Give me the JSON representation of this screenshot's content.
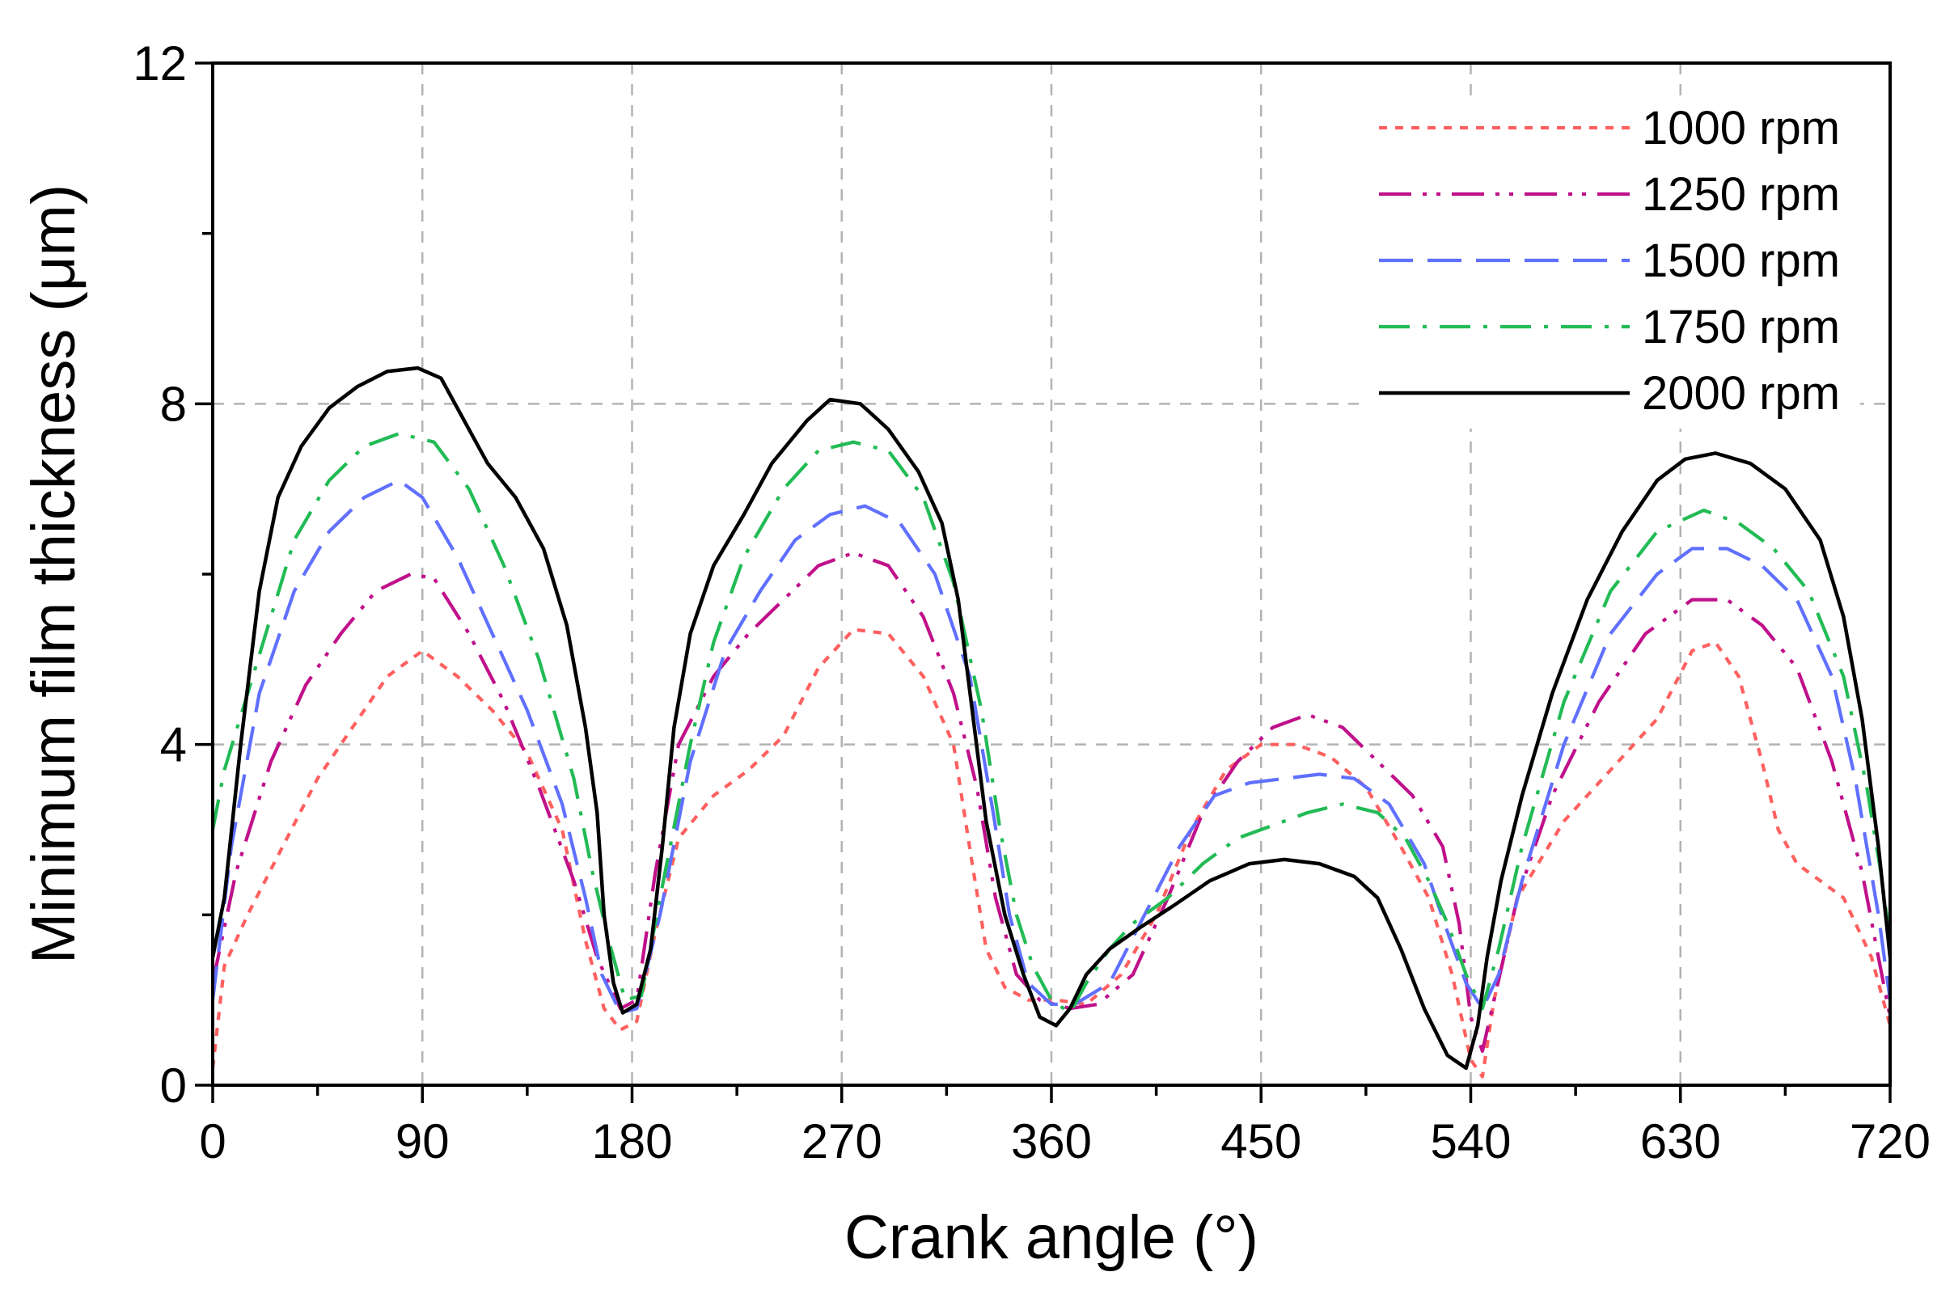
{
  "chart_data": {
    "type": "line",
    "title": "",
    "xlabel": "Crank angle (°)",
    "ylabel": "Minimum film thickness (μm)",
    "xlim": [
      0,
      720
    ],
    "ylim": [
      0,
      12
    ],
    "xticks": [
      0,
      90,
      180,
      270,
      360,
      450,
      540,
      630,
      720
    ],
    "yticks": [
      0,
      4,
      8,
      12
    ],
    "xtick_labels": [
      "0",
      "90",
      "180",
      "270",
      "360",
      "450",
      "540",
      "630",
      "720"
    ],
    "ytick_labels": [
      "0",
      "4",
      "8",
      "12"
    ],
    "grid": true,
    "legend_position": "top-right",
    "series": [
      {
        "name": "1000 rpm",
        "color": "#ff6060",
        "dash": "short-dash",
        "points": [
          [
            0,
            0.2
          ],
          [
            5,
            1.4
          ],
          [
            15,
            2.0
          ],
          [
            30,
            2.8
          ],
          [
            45,
            3.6
          ],
          [
            60,
            4.2
          ],
          [
            75,
            4.8
          ],
          [
            90,
            5.1
          ],
          [
            105,
            4.8
          ],
          [
            120,
            4.4
          ],
          [
            135,
            3.9
          ],
          [
            150,
            3.0
          ],
          [
            160,
            1.7
          ],
          [
            168,
            0.9
          ],
          [
            175,
            0.65
          ],
          [
            182,
            0.75
          ],
          [
            190,
            1.8
          ],
          [
            200,
            2.9
          ],
          [
            215,
            3.4
          ],
          [
            230,
            3.7
          ],
          [
            245,
            4.1
          ],
          [
            260,
            4.9
          ],
          [
            275,
            5.35
          ],
          [
            290,
            5.3
          ],
          [
            305,
            4.8
          ],
          [
            318,
            4.0
          ],
          [
            326,
            2.6
          ],
          [
            332,
            1.6
          ],
          [
            340,
            1.15
          ],
          [
            350,
            1.0
          ],
          [
            362,
            1.0
          ],
          [
            375,
            0.95
          ],
          [
            390,
            1.3
          ],
          [
            405,
            2.0
          ],
          [
            420,
            3.0
          ],
          [
            435,
            3.7
          ],
          [
            450,
            4.0
          ],
          [
            465,
            4.0
          ],
          [
            480,
            3.85
          ],
          [
            495,
            3.5
          ],
          [
            510,
            2.8
          ],
          [
            522,
            2.2
          ],
          [
            532,
            1.3
          ],
          [
            540,
            0.3
          ],
          [
            545,
            0.1
          ],
          [
            550,
            1.0
          ],
          [
            560,
            2.2
          ],
          [
            580,
            3.1
          ],
          [
            600,
            3.7
          ],
          [
            620,
            4.3
          ],
          [
            635,
            5.1
          ],
          [
            645,
            5.2
          ],
          [
            655,
            4.8
          ],
          [
            665,
            3.8
          ],
          [
            672,
            3.0
          ],
          [
            680,
            2.6
          ],
          [
            690,
            2.4
          ],
          [
            700,
            2.2
          ],
          [
            712,
            1.5
          ],
          [
            720,
            0.7
          ]
        ]
      },
      {
        "name": "1250 rpm",
        "color": "#c0108a",
        "dash": "dash-dot-dot",
        "points": [
          [
            0,
            1.2
          ],
          [
            10,
            2.5
          ],
          [
            25,
            3.8
          ],
          [
            40,
            4.7
          ],
          [
            55,
            5.3
          ],
          [
            70,
            5.8
          ],
          [
            85,
            6.0
          ],
          [
            95,
            5.95
          ],
          [
            110,
            5.3
          ],
          [
            125,
            4.5
          ],
          [
            140,
            3.5
          ],
          [
            155,
            2.4
          ],
          [
            165,
            1.5
          ],
          [
            175,
            0.9
          ],
          [
            182,
            1.0
          ],
          [
            190,
            2.5
          ],
          [
            200,
            4.0
          ],
          [
            215,
            4.8
          ],
          [
            230,
            5.3
          ],
          [
            245,
            5.7
          ],
          [
            260,
            6.1
          ],
          [
            275,
            6.25
          ],
          [
            290,
            6.1
          ],
          [
            305,
            5.5
          ],
          [
            318,
            4.6
          ],
          [
            328,
            3.5
          ],
          [
            336,
            2.2
          ],
          [
            345,
            1.3
          ],
          [
            355,
            1.0
          ],
          [
            368,
            0.9
          ],
          [
            380,
            0.95
          ],
          [
            395,
            1.3
          ],
          [
            410,
            2.2
          ],
          [
            425,
            3.2
          ],
          [
            440,
            3.8
          ],
          [
            455,
            4.2
          ],
          [
            470,
            4.35
          ],
          [
            485,
            4.2
          ],
          [
            500,
            3.8
          ],
          [
            515,
            3.4
          ],
          [
            528,
            2.8
          ],
          [
            535,
            1.9
          ],
          [
            540,
            0.8
          ],
          [
            545,
            0.4
          ],
          [
            550,
            1.0
          ],
          [
            560,
            2.2
          ],
          [
            575,
            3.4
          ],
          [
            595,
            4.5
          ],
          [
            615,
            5.3
          ],
          [
            635,
            5.7
          ],
          [
            650,
            5.7
          ],
          [
            665,
            5.4
          ],
          [
            680,
            4.9
          ],
          [
            695,
            3.8
          ],
          [
            708,
            2.5
          ],
          [
            715,
            1.5
          ],
          [
            720,
            0.8
          ]
        ]
      },
      {
        "name": "1500 rpm",
        "color": "#6070ff",
        "dash": "long-dash",
        "points": [
          [
            0,
            1.0
          ],
          [
            8,
            2.8
          ],
          [
            20,
            4.6
          ],
          [
            35,
            5.8
          ],
          [
            50,
            6.5
          ],
          [
            65,
            6.9
          ],
          [
            80,
            7.1
          ],
          [
            90,
            6.9
          ],
          [
            105,
            6.2
          ],
          [
            120,
            5.3
          ],
          [
            135,
            4.4
          ],
          [
            150,
            3.3
          ],
          [
            160,
            2.2
          ],
          [
            167,
            1.3
          ],
          [
            175,
            0.85
          ],
          [
            182,
            0.9
          ],
          [
            192,
            2.0
          ],
          [
            205,
            3.8
          ],
          [
            220,
            5.1
          ],
          [
            235,
            5.8
          ],
          [
            250,
            6.4
          ],
          [
            265,
            6.7
          ],
          [
            280,
            6.8
          ],
          [
            295,
            6.6
          ],
          [
            310,
            6.0
          ],
          [
            325,
            4.8
          ],
          [
            335,
            3.2
          ],
          [
            342,
            2.0
          ],
          [
            350,
            1.2
          ],
          [
            360,
            0.95
          ],
          [
            370,
            0.95
          ],
          [
            385,
            1.2
          ],
          [
            400,
            2.0
          ],
          [
            415,
            2.8
          ],
          [
            430,
            3.4
          ],
          [
            445,
            3.55
          ],
          [
            460,
            3.6
          ],
          [
            475,
            3.65
          ],
          [
            490,
            3.6
          ],
          [
            505,
            3.3
          ],
          [
            520,
            2.6
          ],
          [
            530,
            1.8
          ],
          [
            538,
            1.2
          ],
          [
            545,
            0.9
          ],
          [
            552,
            1.3
          ],
          [
            562,
            2.4
          ],
          [
            580,
            4.0
          ],
          [
            600,
            5.3
          ],
          [
            620,
            6.0
          ],
          [
            635,
            6.3
          ],
          [
            650,
            6.3
          ],
          [
            665,
            6.1
          ],
          [
            680,
            5.7
          ],
          [
            695,
            4.8
          ],
          [
            705,
            3.6
          ],
          [
            715,
            2.0
          ],
          [
            720,
            1.0
          ]
        ]
      },
      {
        "name": "1750 rpm",
        "color": "#22bb55",
        "dash": "dash-dot",
        "points": [
          [
            0,
            3.0
          ],
          [
            5,
            3.7
          ],
          [
            15,
            4.6
          ],
          [
            25,
            5.5
          ],
          [
            35,
            6.4
          ],
          [
            50,
            7.1
          ],
          [
            65,
            7.5
          ],
          [
            80,
            7.65
          ],
          [
            95,
            7.55
          ],
          [
            110,
            7.0
          ],
          [
            125,
            6.1
          ],
          [
            140,
            5.0
          ],
          [
            155,
            3.6
          ],
          [
            163,
            2.5
          ],
          [
            170,
            1.7
          ],
          [
            177,
            1.0
          ],
          [
            184,
            1.05
          ],
          [
            192,
            2.2
          ],
          [
            205,
            4.0
          ],
          [
            215,
            5.2
          ],
          [
            228,
            6.2
          ],
          [
            245,
            7.0
          ],
          [
            260,
            7.45
          ],
          [
            275,
            7.55
          ],
          [
            290,
            7.45
          ],
          [
            305,
            6.9
          ],
          [
            318,
            5.9
          ],
          [
            330,
            4.4
          ],
          [
            338,
            3.0
          ],
          [
            345,
            2.0
          ],
          [
            352,
            1.4
          ],
          [
            360,
            1.0
          ],
          [
            368,
            0.85
          ],
          [
            375,
            1.2
          ],
          [
            385,
            1.6
          ],
          [
            395,
            1.9
          ],
          [
            410,
            2.2
          ],
          [
            425,
            2.6
          ],
          [
            440,
            2.9
          ],
          [
            455,
            3.05
          ],
          [
            470,
            3.2
          ],
          [
            485,
            3.3
          ],
          [
            500,
            3.2
          ],
          [
            512,
            2.9
          ],
          [
            522,
            2.4
          ],
          [
            530,
            1.9
          ],
          [
            538,
            1.3
          ],
          [
            545,
            0.9
          ],
          [
            552,
            1.6
          ],
          [
            562,
            2.8
          ],
          [
            580,
            4.5
          ],
          [
            600,
            5.8
          ],
          [
            620,
            6.5
          ],
          [
            640,
            6.75
          ],
          [
            655,
            6.6
          ],
          [
            670,
            6.3
          ],
          [
            685,
            5.8
          ],
          [
            700,
            4.8
          ],
          [
            710,
            3.5
          ],
          [
            716,
            2.5
          ],
          [
            720,
            1.7
          ]
        ]
      },
      {
        "name": "2000 rpm",
        "color": "#000000",
        "dash": "solid",
        "points": [
          [
            0,
            1.5
          ],
          [
            5,
            2.2
          ],
          [
            12,
            4.0
          ],
          [
            20,
            5.8
          ],
          [
            28,
            6.9
          ],
          [
            38,
            7.5
          ],
          [
            50,
            7.95
          ],
          [
            62,
            8.2
          ],
          [
            75,
            8.38
          ],
          [
            88,
            8.42
          ],
          [
            98,
            8.3
          ],
          [
            108,
            7.8
          ],
          [
            118,
            7.3
          ],
          [
            130,
            6.9
          ],
          [
            142,
            6.3
          ],
          [
            152,
            5.4
          ],
          [
            160,
            4.2
          ],
          [
            165,
            3.2
          ],
          [
            168,
            2.0
          ],
          [
            172,
            1.2
          ],
          [
            176,
            0.85
          ],
          [
            182,
            0.95
          ],
          [
            188,
            1.6
          ],
          [
            193,
            2.8
          ],
          [
            198,
            4.2
          ],
          [
            205,
            5.3
          ],
          [
            215,
            6.1
          ],
          [
            228,
            6.7
          ],
          [
            240,
            7.3
          ],
          [
            255,
            7.8
          ],
          [
            265,
            8.05
          ],
          [
            278,
            8.0
          ],
          [
            290,
            7.7
          ],
          [
            303,
            7.2
          ],
          [
            313,
            6.6
          ],
          [
            320,
            5.7
          ],
          [
            326,
            4.4
          ],
          [
            332,
            3.1
          ],
          [
            340,
            2.0
          ],
          [
            348,
            1.3
          ],
          [
            355,
            0.8
          ],
          [
            362,
            0.7
          ],
          [
            368,
            0.9
          ],
          [
            375,
            1.3
          ],
          [
            385,
            1.6
          ],
          [
            398,
            1.85
          ],
          [
            412,
            2.1
          ],
          [
            428,
            2.4
          ],
          [
            445,
            2.6
          ],
          [
            460,
            2.65
          ],
          [
            475,
            2.6
          ],
          [
            490,
            2.45
          ],
          [
            500,
            2.2
          ],
          [
            510,
            1.6
          ],
          [
            520,
            0.9
          ],
          [
            530,
            0.35
          ],
          [
            538,
            0.2
          ],
          [
            543,
            0.7
          ],
          [
            547,
            1.5
          ],
          [
            553,
            2.4
          ],
          [
            562,
            3.4
          ],
          [
            575,
            4.6
          ],
          [
            590,
            5.7
          ],
          [
            605,
            6.5
          ],
          [
            620,
            7.1
          ],
          [
            632,
            7.35
          ],
          [
            645,
            7.42
          ],
          [
            660,
            7.3
          ],
          [
            675,
            7.0
          ],
          [
            690,
            6.4
          ],
          [
            700,
            5.5
          ],
          [
            708,
            4.3
          ],
          [
            715,
            2.8
          ],
          [
            720,
            1.5
          ]
        ]
      }
    ]
  }
}
